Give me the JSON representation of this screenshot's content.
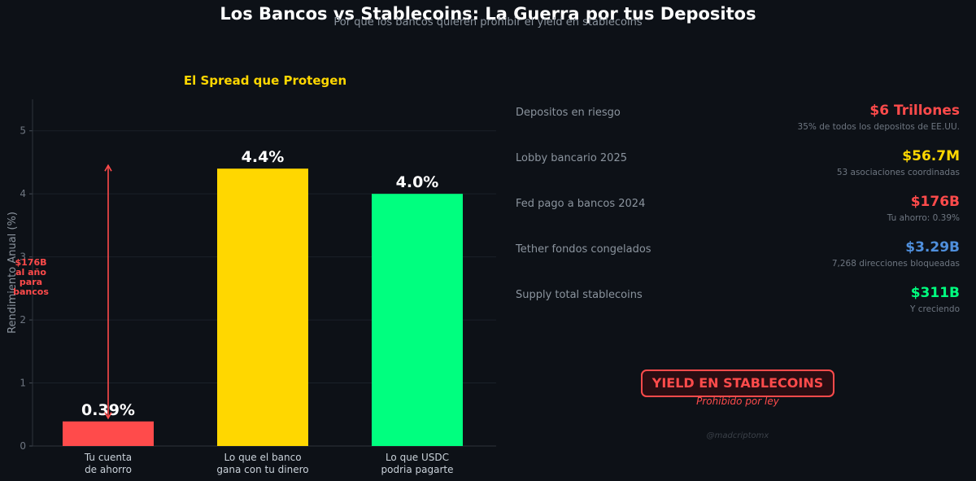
{
  "header": {
    "title": "Los Bancos vs Stablecoins: La Guerra por tus Depositos",
    "subtitle": "Por que los bancos quieren prohibir el yield en stablecoins"
  },
  "chart_data": {
    "type": "bar",
    "title": "El Spread que Protegen",
    "ylabel": "Rendimiento Anual (%)",
    "ylim": [
      0,
      5.5
    ],
    "yticks": [
      0,
      1,
      2,
      3,
      4,
      5
    ],
    "categories": [
      "Tu cuenta\nde ahorro",
      "Lo que el banco\ngana con tu dinero",
      "Lo que USDC\npodria pagarte"
    ],
    "values": [
      0.39,
      4.4,
      4.0
    ],
    "value_labels": [
      "0.39%",
      "4.4%",
      "4.0%"
    ],
    "colors": [
      "#ff4b4b",
      "#ffd700",
      "#00ff7f"
    ],
    "annotation": {
      "text": "$176B\nal año\npara\nbancos",
      "from": 0.39,
      "to": 4.4,
      "color": "#ff4b4b"
    },
    "grid": true
  },
  "stats": [
    {
      "label": "Depositos en riesgo",
      "value": "$6 Trillones",
      "note": "35% de todos los depositos de EE.UU.",
      "color": "#ff4b4b"
    },
    {
      "label": "Lobby bancario 2025",
      "value": "$56.7M",
      "note": "53 asociaciones coordinadas",
      "color": "#ffd700"
    },
    {
      "label": "Fed pago a bancos 2024",
      "value": "$176B",
      "note": "Tu ahorro: 0.39%",
      "color": "#ff4b4b"
    },
    {
      "label": "Tether fondos congelados",
      "value": "$3.29B",
      "note": "7,268 direcciones bloqueadas",
      "color": "#4f8fdc"
    },
    {
      "label": "Supply total stablecoins",
      "value": "$311B",
      "note": "Y creciendo",
      "color": "#00ff7f"
    }
  ],
  "badge": {
    "label": "YIELD EN STABLECOINS",
    "sub": "Prohibido por ley"
  },
  "watermark": "@madcriptomx"
}
